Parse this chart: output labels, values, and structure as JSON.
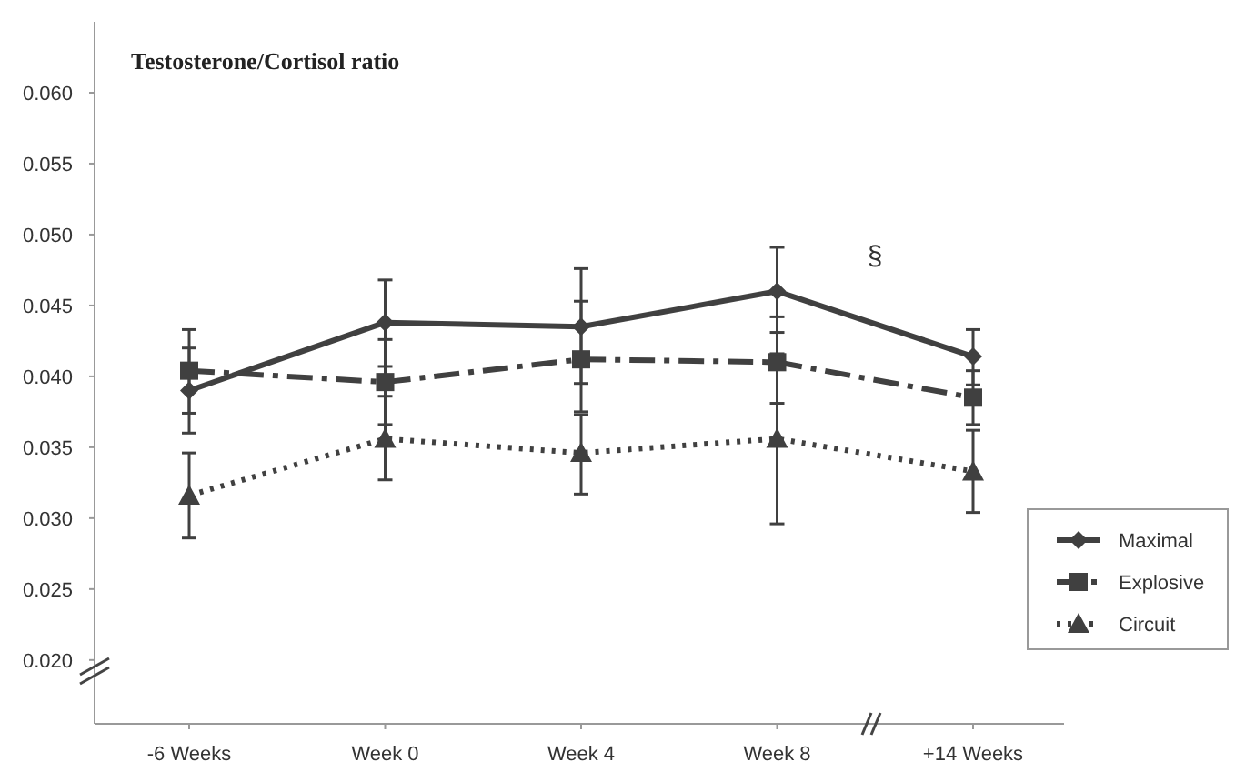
{
  "chart_data": {
    "type": "line",
    "title": "Testosterone/Cortisol ratio",
    "categories": [
      "-6 Weeks",
      "Week 0",
      "Week 4",
      "Week 8",
      "+14 Weeks"
    ],
    "series": [
      {
        "name": "Maximal",
        "color": "#404040",
        "marker": "diamond",
        "line_style": "solid",
        "values": [
          0.039,
          0.0438,
          0.0435,
          0.046,
          0.0414
        ],
        "errors": [
          [
            0.036,
            0.042
          ],
          [
            0.0407,
            0.0468
          ],
          [
            0.0395,
            0.0476
          ],
          [
            0.0431,
            0.0491
          ],
          [
            0.0394,
            0.0433
          ]
        ]
      },
      {
        "name": "Explosive",
        "color": "#404040",
        "marker": "square",
        "line_style": "dashdot",
        "values": [
          0.0404,
          0.0396,
          0.0412,
          0.041,
          0.0385
        ],
        "errors": [
          [
            0.0374,
            0.0433
          ],
          [
            0.0366,
            0.0426
          ],
          [
            0.0375,
            0.0453
          ],
          [
            0.0381,
            0.0442
          ],
          [
            0.0366,
            0.0404
          ]
        ]
      },
      {
        "name": "Circuit",
        "color": "#404040",
        "marker": "triangle",
        "line_style": "dotted",
        "values": [
          0.0316,
          0.0356,
          0.0346,
          0.0356,
          0.0333
        ],
        "errors": [
          [
            0.0286,
            0.0346
          ],
          [
            0.0327,
            0.0386
          ],
          [
            0.0317,
            0.0373
          ],
          [
            0.0296,
            0.0416
          ],
          [
            0.0304,
            0.0362
          ]
        ]
      }
    ],
    "ylim": [
      0.0155,
      0.065
    ],
    "yticks": [
      {
        "value": 0.02,
        "label": "0.020"
      },
      0.025,
      {
        "value": 0.03,
        "label": "0.030"
      },
      0.035,
      {
        "value": 0.04,
        "label": "0.040"
      },
      0.045,
      {
        "value": 0.05,
        "label": "0.050"
      },
      0.055,
      {
        "value": 0.06,
        "label": "0.060"
      }
    ],
    "legend": "bottom right",
    "annotations": [
      "§"
    ]
  }
}
